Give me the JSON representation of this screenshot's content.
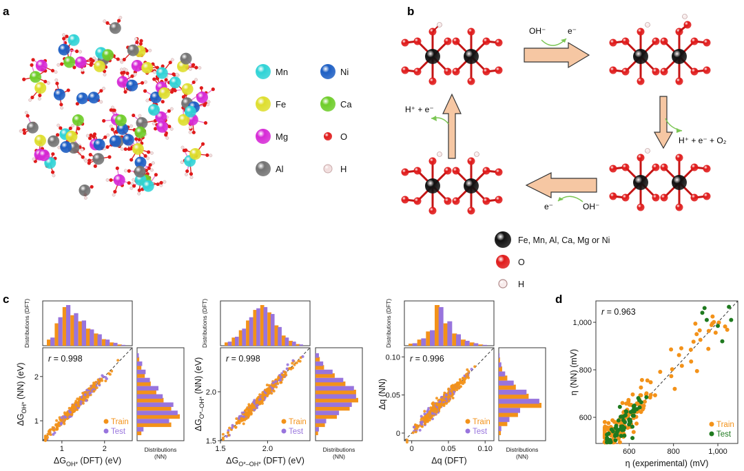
{
  "panel_labels": {
    "a": "a",
    "b": "b",
    "c": "c",
    "d": "d"
  },
  "legend_a": [
    {
      "label": "Mn",
      "color": "#2fd3d6"
    },
    {
      "label": "Ni",
      "color": "#1d5fc4"
    },
    {
      "label": "Fe",
      "color": "#dede2e"
    },
    {
      "label": "Ca",
      "color": "#6fcd2a"
    },
    {
      "label": "Mg",
      "color": "#d62ad6"
    },
    {
      "label": "O",
      "color": "#e01b1b"
    },
    {
      "label": "Al",
      "color": "#737373"
    },
    {
      "label": "H",
      "color": "#f1dcdc"
    }
  ],
  "cycle_b": {
    "top_left": "OH⁻",
    "top_right": "e⁻",
    "right": "H⁺ + e⁻ + O₂",
    "bottom_left": "e⁻",
    "bottom_right": "OH⁻",
    "left": "H⁺ + e⁻"
  },
  "legend_b": [
    {
      "label": "Fe, Mn, Al, Ca, Mg or Ni",
      "color": "#111111"
    },
    {
      "label": "O",
      "color": "#e01b1b"
    },
    {
      "label": "H",
      "color": "#f7eaea"
    }
  ],
  "colors": {
    "train": "#f39219",
    "test": "#9874dd",
    "test_d": "#1f7a1f"
  },
  "hist_labels": {
    "dft": "Distributions (DFT)",
    "nn": "Distributions (NN)"
  },
  "chart_data": [
    {
      "type": "scatter",
      "id": "c1",
      "r_text": "r = 0.998",
      "xlabel": "ΔG_OH* (DFT) (eV)",
      "ylabel": "ΔG_OH* (NN) (eV)",
      "xlim": [
        0.55,
        2.65
      ],
      "ylim": [
        0.55,
        2.65
      ],
      "xticks": [
        1,
        2
      ],
      "yticks": [
        1,
        2
      ],
      "tick_labels_x": [
        "1",
        "2"
      ],
      "tick_labels_y": [
        "1",
        "2"
      ],
      "center": 1.35,
      "spread": 0.34,
      "noise": 0.05,
      "legend": [
        "Train",
        "Test"
      ],
      "hist_top": {
        "train": [
          0.15,
          0.55,
          0.95,
          0.75,
          0.6,
          0.42,
          0.3,
          0.16,
          0.08,
          0.03
        ],
        "test": [
          0.2,
          0.7,
          1.0,
          0.8,
          0.62,
          0.4,
          0.28,
          0.15,
          0.07,
          0.02
        ]
      },
      "hist_right": {
        "train": [
          0.1,
          0.8,
          1.0,
          0.8,
          0.62,
          0.45,
          0.32,
          0.18,
          0.1,
          0.05
        ],
        "test": [
          0.15,
          0.75,
          0.95,
          0.85,
          0.6,
          0.5,
          0.3,
          0.2,
          0.12,
          0.04
        ]
      }
    },
    {
      "type": "scatter",
      "id": "c2",
      "r_text": "r = 0.998",
      "xlabel": "ΔG_O*–OH* (DFT) (eV)",
      "ylabel": "ΔG_O*–OH* (NN) (eV)",
      "xlim": [
        1.5,
        2.45
      ],
      "ylim": [
        1.5,
        2.45
      ],
      "xticks": [
        1.5,
        2.0
      ],
      "yticks": [
        1.5,
        2.0
      ],
      "tick_labels_x": [
        "1.5",
        "2.0"
      ],
      "tick_labels_y": [
        "1.5",
        "2.0"
      ],
      "center": 1.92,
      "spread": 0.15,
      "noise": 0.025,
      "legend": [
        "Train",
        "Test"
      ],
      "hist_top": {
        "train": [
          0.08,
          0.2,
          0.38,
          0.62,
          0.88,
          1.0,
          0.82,
          0.5,
          0.25,
          0.12,
          0.04
        ],
        "test": [
          0.1,
          0.22,
          0.42,
          0.7,
          0.92,
          0.95,
          0.78,
          0.46,
          0.2,
          0.1,
          0.03
        ]
      },
      "hist_right": {
        "train": [
          0.06,
          0.22,
          0.5,
          0.8,
          1.0,
          0.95,
          0.7,
          0.45,
          0.2,
          0.1
        ],
        "test": [
          0.08,
          0.25,
          0.55,
          0.85,
          0.95,
          0.9,
          0.65,
          0.4,
          0.18,
          0.08
        ]
      }
    },
    {
      "type": "scatter",
      "id": "c3",
      "r_text": "r = 0.996",
      "xlabel": "Δq (DFT)",
      "ylabel": "Δq (NN)",
      "xlim": [
        -0.01,
        0.112
      ],
      "ylim": [
        -0.01,
        0.112
      ],
      "xticks": [
        0,
        0.05,
        0.1
      ],
      "yticks": [
        0,
        0.05,
        0.1
      ],
      "tick_labels_x": [
        "0",
        "0.05",
        "0.10"
      ],
      "tick_labels_y": [
        "0",
        "0.05",
        "0.10"
      ],
      "center": 0.04,
      "spread": 0.017,
      "noise": 0.004,
      "legend": [
        "Train",
        "Test"
      ],
      "hist_top": {
        "train": [
          0.05,
          0.15,
          0.35,
          1.0,
          0.55,
          0.3,
          0.15,
          0.08,
          0.03
        ],
        "test": [
          0.06,
          0.18,
          0.38,
          0.95,
          0.6,
          0.28,
          0.12,
          0.06,
          0.02
        ]
      },
      "hist_right": {
        "train": [
          0.05,
          0.2,
          0.45,
          1.0,
          0.7,
          0.4,
          0.2,
          0.08,
          0.03
        ],
        "test": [
          0.06,
          0.25,
          0.5,
          0.95,
          0.65,
          0.35,
          0.15,
          0.06,
          0.02
        ]
      }
    },
    {
      "type": "scatter",
      "id": "d",
      "r_text": "r = 0.963",
      "xlabel": "η (experimental) (mV)",
      "ylabel": "η (NN) (mV)",
      "xlim": [
        450,
        1090
      ],
      "ylim": [
        490,
        1090
      ],
      "xticks": [
        600,
        800,
        1000
      ],
      "yticks": [
        600,
        800,
        1000
      ],
      "tick_labels_x": [
        "600",
        "800",
        "1,000"
      ],
      "tick_labels_y": [
        "600",
        "800",
        "1,000"
      ],
      "legend": [
        "Train",
        "Test"
      ]
    }
  ]
}
